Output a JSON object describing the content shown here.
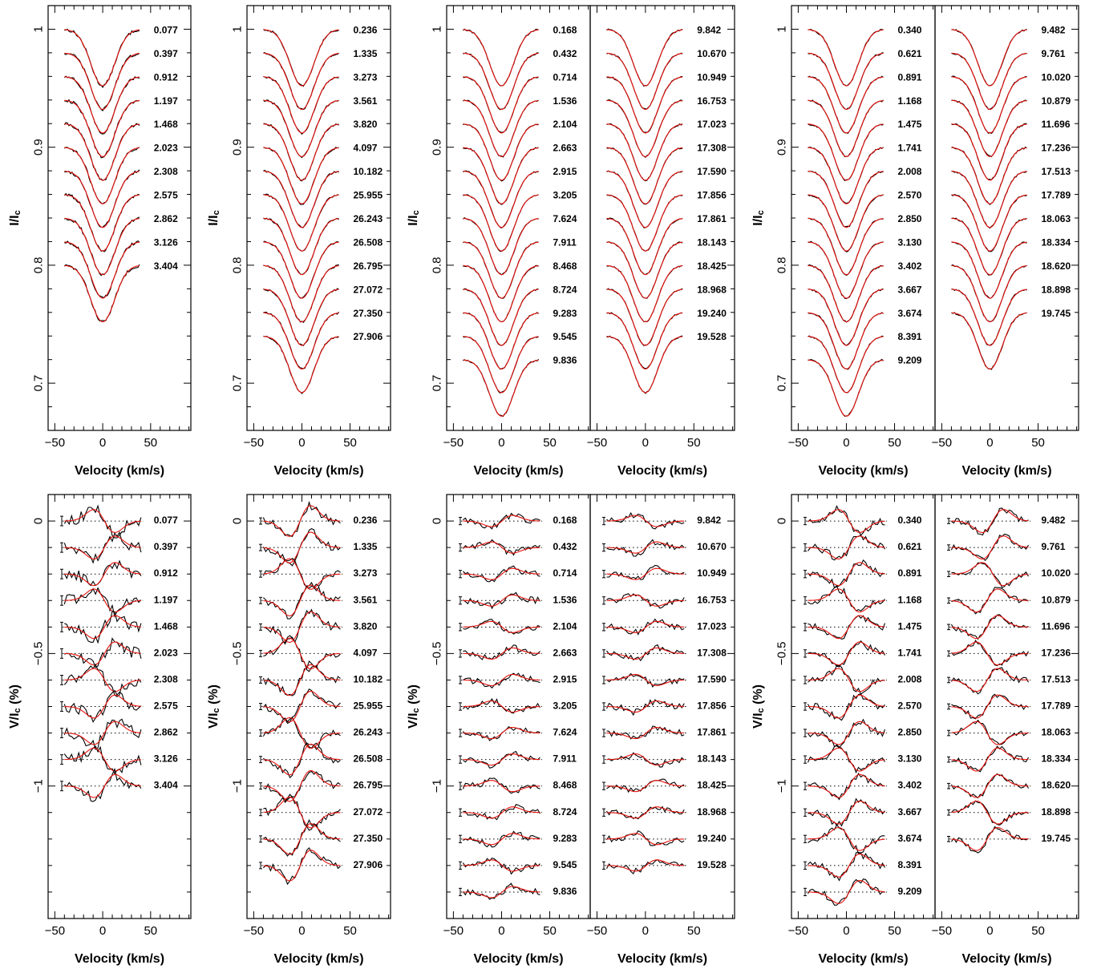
{
  "chart_data": [
    {
      "type": "line",
      "xlabel": "Velocity (km/s)",
      "ylabel": "I/I_c",
      "xlim": [
        -57,
        92
      ],
      "ylim": [
        0.66,
        1.02
      ],
      "xticks": [
        -50,
        0,
        50
      ],
      "yticks": [
        0.7,
        0.8,
        0.9,
        1
      ],
      "ytick_labels": [
        "0.7",
        "0.8",
        "0.9",
        "1"
      ],
      "columns": [
        {
          "phases": [
            "0.077",
            "0.397",
            "0.912",
            "1.197",
            "1.468",
            "2.023",
            "2.308",
            "2.575",
            "2.862",
            "3.126",
            "3.404"
          ],
          "depth": 0.048,
          "width": 12.5,
          "noise": 0.0013
        }
      ]
    },
    {
      "type": "line",
      "xlabel": "Velocity (km/s)",
      "ylabel": "I/I_c",
      "xlim": [
        -57,
        92
      ],
      "ylim": [
        0.66,
        1.02
      ],
      "xticks": [
        -50,
        0,
        50
      ],
      "yticks": [
        0.7,
        0.8,
        0.9,
        1
      ],
      "ytick_labels": [
        "0.7",
        "0.8",
        "0.9",
        "1"
      ],
      "columns": [
        {
          "phases": [
            "0.236",
            "1.335",
            "3.273",
            "3.561",
            "3.820",
            "4.097",
            "10.182",
            "25.955",
            "26.243",
            "26.508",
            "26.795",
            "27.072",
            "27.350",
            "27.906"
          ],
          "depth": 0.048,
          "width": 12.5,
          "noise": 0.0009
        }
      ]
    },
    {
      "type": "line",
      "xlabel": "Velocity (km/s)",
      "ylabel": "I/I_c",
      "xlim": [
        -57,
        92
      ],
      "ylim": [
        0.66,
        1.02
      ],
      "xticks": [
        -50,
        0,
        50
      ],
      "yticks": [
        0.7,
        0.8,
        0.9,
        1
      ],
      "ytick_labels": [
        "0.7",
        "0.8",
        "0.9",
        "1"
      ],
      "columns": [
        {
          "phases": [
            "0.168",
            "0.432",
            "0.714",
            "1.536",
            "2.104",
            "2.663",
            "2.915",
            "3.205",
            "7.624",
            "7.911",
            "8.468",
            "8.724",
            "9.283",
            "9.545",
            "9.836"
          ],
          "depth": 0.048,
          "width": 12.5,
          "noise": 0.0007
        },
        {
          "phases": [
            "9.842",
            "10.670",
            "10.949",
            "16.753",
            "17.023",
            "17.308",
            "17.590",
            "17.856",
            "17.861",
            "18.143",
            "18.425",
            "18.968",
            "19.240",
            "19.528"
          ],
          "depth": 0.048,
          "width": 12.5,
          "noise": 0.0007
        }
      ]
    },
    {
      "type": "line",
      "xlabel": "Velocity (km/s)",
      "ylabel": "I/I_c",
      "xlim": [
        -57,
        92
      ],
      "ylim": [
        0.66,
        1.02
      ],
      "xticks": [
        -50,
        0,
        50
      ],
      "yticks": [
        0.7,
        0.8,
        0.9,
        1
      ],
      "ytick_labels": [
        "0.7",
        "0.8",
        "0.9",
        "1"
      ],
      "columns": [
        {
          "phases": [
            "0.340",
            "0.621",
            "0.891",
            "1.168",
            "1.475",
            "1.741",
            "2.008",
            "2.570",
            "2.850",
            "3.130",
            "3.402",
            "3.667",
            "3.674",
            "8.391",
            "9.209"
          ],
          "depth": 0.048,
          "width": 12.5,
          "noise": 0.0008
        },
        {
          "phases": [
            "9.482",
            "9.761",
            "10.020",
            "10.879",
            "11.696",
            "17.236",
            "17.513",
            "17.789",
            "18.063",
            "18.334",
            "18.620",
            "18.898",
            "19.745"
          ],
          "depth": 0.048,
          "width": 12.5,
          "noise": 0.0008
        }
      ]
    },
    {
      "type": "line",
      "xlabel": "Velocity (km/s)",
      "ylabel": "V/I_c (%)",
      "xlim": [
        -57,
        92
      ],
      "ylim": [
        -1.5,
        0.1
      ],
      "xticks": [
        -50,
        0,
        50
      ],
      "yticks": [
        -1,
        -0.5,
        0
      ],
      "ytick_labels": [
        "−1",
        "−0.5",
        "0"
      ],
      "columns": [
        {
          "phases": [
            "0.077",
            "0.397",
            "0.912",
            "1.197",
            "1.468",
            "2.023",
            "2.308",
            "2.575",
            "2.862",
            "3.126",
            "3.404"
          ],
          "amp": 0.045,
          "noise": 0.022,
          "errbar": 0.018
        }
      ]
    },
    {
      "type": "line",
      "xlabel": "Velocity (km/s)",
      "ylabel": "V/I_c (%)",
      "xlim": [
        -57,
        92
      ],
      "ylim": [
        -1.5,
        0.1
      ],
      "xticks": [
        -50,
        0,
        50
      ],
      "yticks": [
        -1,
        -0.5,
        0
      ],
      "ytick_labels": [
        "−1",
        "−0.5",
        "0"
      ],
      "columns": [
        {
          "phases": [
            "0.236",
            "1.335",
            "3.273",
            "3.561",
            "3.820",
            "4.097",
            "10.182",
            "25.955",
            "26.243",
            "26.508",
            "26.795",
            "27.072",
            "27.350",
            "27.906"
          ],
          "amp": 0.06,
          "noise": 0.015,
          "errbar": 0.012
        }
      ]
    },
    {
      "type": "line",
      "xlabel": "Velocity (km/s)",
      "ylabel": "V/I_c (%)",
      "xlim": [
        -57,
        92
      ],
      "ylim": [
        -1.5,
        0.1
      ],
      "xticks": [
        -50,
        0,
        50
      ],
      "yticks": [
        -1,
        -0.5,
        0
      ],
      "ytick_labels": [
        "−1",
        "−0.5",
        "0"
      ],
      "columns": [
        {
          "phases": [
            "0.168",
            "0.432",
            "0.714",
            "1.536",
            "2.104",
            "2.663",
            "2.915",
            "3.205",
            "7.624",
            "7.911",
            "8.468",
            "8.724",
            "9.283",
            "9.545",
            "9.836"
          ],
          "amp": 0.022,
          "noise": 0.012,
          "errbar": 0.014
        },
        {
          "phases": [
            "9.842",
            "10.670",
            "10.949",
            "16.753",
            "17.023",
            "17.308",
            "17.590",
            "17.856",
            "17.861",
            "18.143",
            "18.425",
            "18.968",
            "19.240",
            "19.528"
          ],
          "amp": 0.022,
          "noise": 0.012,
          "errbar": 0.014
        }
      ]
    },
    {
      "type": "line",
      "xlabel": "Velocity (km/s)",
      "ylabel": "V/I_c (%)",
      "xlim": [
        -57,
        92
      ],
      "ylim": [
        -1.5,
        0.1
      ],
      "xticks": [
        -50,
        0,
        50
      ],
      "yticks": [
        -1,
        -0.5,
        0
      ],
      "ytick_labels": [
        "−1",
        "−0.5",
        "0"
      ],
      "columns": [
        {
          "phases": [
            "0.340",
            "0.621",
            "0.891",
            "1.168",
            "1.475",
            "1.741",
            "2.008",
            "2.570",
            "2.850",
            "3.130",
            "3.402",
            "3.667",
            "3.674",
            "8.391",
            "9.209"
          ],
          "amp": 0.045,
          "noise": 0.014,
          "errbar": 0.014
        },
        {
          "phases": [
            "9.482",
            "9.761",
            "10.020",
            "10.879",
            "11.696",
            "17.236",
            "17.513",
            "17.789",
            "18.063",
            "18.334",
            "18.620",
            "18.898",
            "19.745"
          ],
          "amp": 0.045,
          "noise": 0.011,
          "errbar": 0.01
        }
      ]
    }
  ]
}
